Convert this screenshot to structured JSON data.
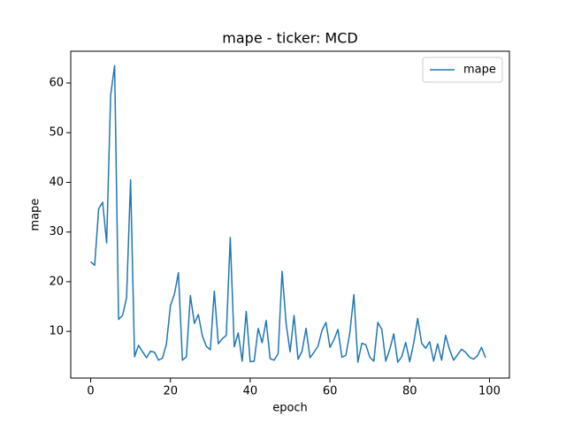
{
  "chart_data": {
    "type": "line",
    "title": "mape - ticker: MCD",
    "x_label": "epoch",
    "y_label": "mape",
    "x": [
      0,
      1,
      2,
      3,
      4,
      5,
      6,
      7,
      8,
      9,
      10,
      11,
      12,
      13,
      14,
      15,
      16,
      17,
      18,
      19,
      20,
      21,
      22,
      23,
      24,
      25,
      26,
      27,
      28,
      29,
      30,
      31,
      32,
      33,
      34,
      35,
      36,
      37,
      38,
      39,
      40,
      41,
      42,
      43,
      44,
      45,
      46,
      47,
      48,
      49,
      50,
      51,
      52,
      53,
      54,
      55,
      56,
      57,
      58,
      59,
      60,
      61,
      62,
      63,
      64,
      65,
      66,
      67,
      68,
      69,
      70,
      71,
      72,
      73,
      74,
      75,
      76,
      77,
      78,
      79,
      80,
      81,
      82,
      83,
      84,
      85,
      86,
      87,
      88,
      89,
      90,
      91,
      92,
      93,
      94,
      95,
      96,
      97,
      98,
      99
    ],
    "series": [
      {
        "name": "mape",
        "color": "#1f77b4",
        "values": [
          24.0,
          23.3,
          34.7,
          36.0,
          27.8,
          57.5,
          63.5,
          12.4,
          13.2,
          16.8,
          40.5,
          4.9,
          7.2,
          5.9,
          4.7,
          6.0,
          5.8,
          4.2,
          4.6,
          7.5,
          15.2,
          17.5,
          21.8,
          4.2,
          4.9,
          17.2,
          11.6,
          13.4,
          9.1,
          7.0,
          6.3,
          18.1,
          7.5,
          8.5,
          9.2,
          28.9,
          6.9,
          9.7,
          4.0,
          14.0,
          3.9,
          4.0,
          10.6,
          7.7,
          12.2,
          4.5,
          4.2,
          5.5,
          22.1,
          11.6,
          5.9,
          13.2,
          4.4,
          6.0,
          10.6,
          4.7,
          5.8,
          7.0,
          10.2,
          11.8,
          6.8,
          8.3,
          10.4,
          4.8,
          5.2,
          9.8,
          17.4,
          3.8,
          7.6,
          7.3,
          4.8,
          4.0,
          11.8,
          10.4,
          4.0,
          6.4,
          9.5,
          3.8,
          4.9,
          7.8,
          3.9,
          7.6,
          12.6,
          7.6,
          6.6,
          7.9,
          4.0,
          7.5,
          4.2,
          9.2,
          6.3,
          4.2,
          5.3,
          6.4,
          5.8,
          4.8,
          4.4,
          5.1,
          6.8,
          4.7
        ]
      }
    ],
    "xlim": [
      -5,
      105
    ],
    "ylim": [
      0.6,
      66.4
    ],
    "xticks": [
      0,
      20,
      40,
      60,
      80,
      100
    ],
    "yticks": [
      10,
      20,
      30,
      40,
      50,
      60
    ],
    "legend": "upper right"
  }
}
